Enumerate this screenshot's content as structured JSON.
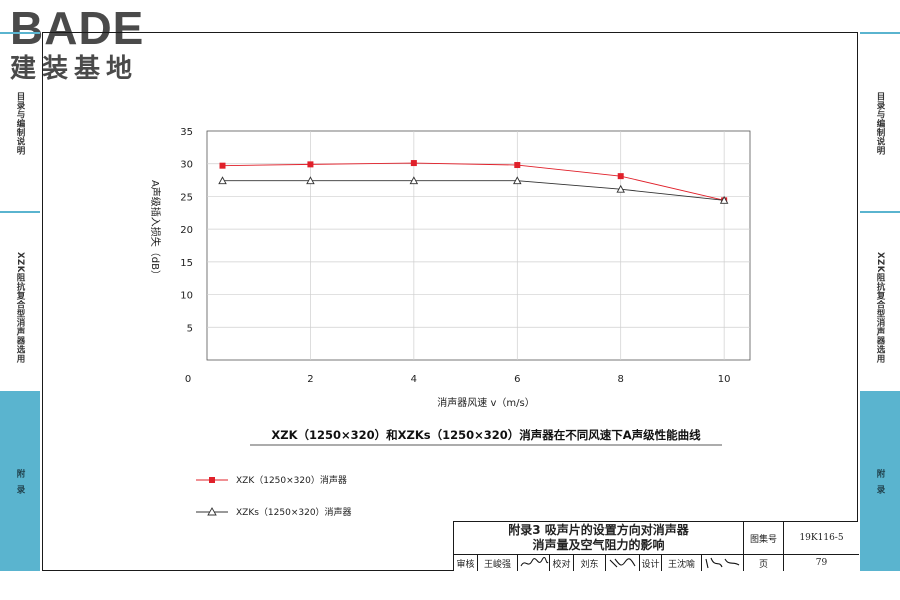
{
  "logo": {
    "latin": "BADE",
    "cjk": "建装基地"
  },
  "side_tabs": {
    "left": [
      "目录与编制说明",
      "XZK阻抗复合型消声器选用",
      "附",
      "录"
    ],
    "right": [
      "目录与编制说明",
      "XZK阻抗复合型消声器选用",
      "附",
      "录"
    ]
  },
  "chart_data": {
    "type": "line",
    "title": "XZK（1250×320）和XZKs（1250×320）消声器在不同风速下A声级性能曲线",
    "xlabel": "消声器风速 v（m/s）",
    "ylabel": "A声级插入损失（dB）",
    "x": [
      0.3,
      2,
      4,
      6,
      8,
      10
    ],
    "xlim": [
      0,
      10.5
    ],
    "ylim": [
      0,
      35
    ],
    "xticks": [
      "0",
      "2",
      "4",
      "6",
      "8",
      "10"
    ],
    "yticks": [
      "5",
      "10",
      "15",
      "20",
      "25",
      "30",
      "35"
    ],
    "grid": true,
    "legend_position": "bottom-left",
    "series": [
      {
        "name": "XZK（1250×320）消声器",
        "color": "#e0202a",
        "marker": "square",
        "values": [
          29.7,
          29.9,
          30.1,
          29.8,
          28.1,
          24.4
        ]
      },
      {
        "name": "XZKs（1250×320）消声器",
        "color": "#333333",
        "marker": "triangle",
        "values": [
          27.4,
          27.4,
          27.4,
          27.4,
          26.1,
          24.4
        ]
      }
    ]
  },
  "title_block": {
    "title_line1": "附录3 吸声片的设置方向对消声器",
    "title_line2": "消声量及空气阻力的影响",
    "atlas_label": "图集号",
    "atlas_no": "19K116-5",
    "review_label": "审核",
    "review_name": "王峻强",
    "check_label": "校对",
    "check_name": "刘东",
    "design_label": "设计",
    "design_name": "王沈喻",
    "page_label": "页",
    "page_no": "79"
  }
}
